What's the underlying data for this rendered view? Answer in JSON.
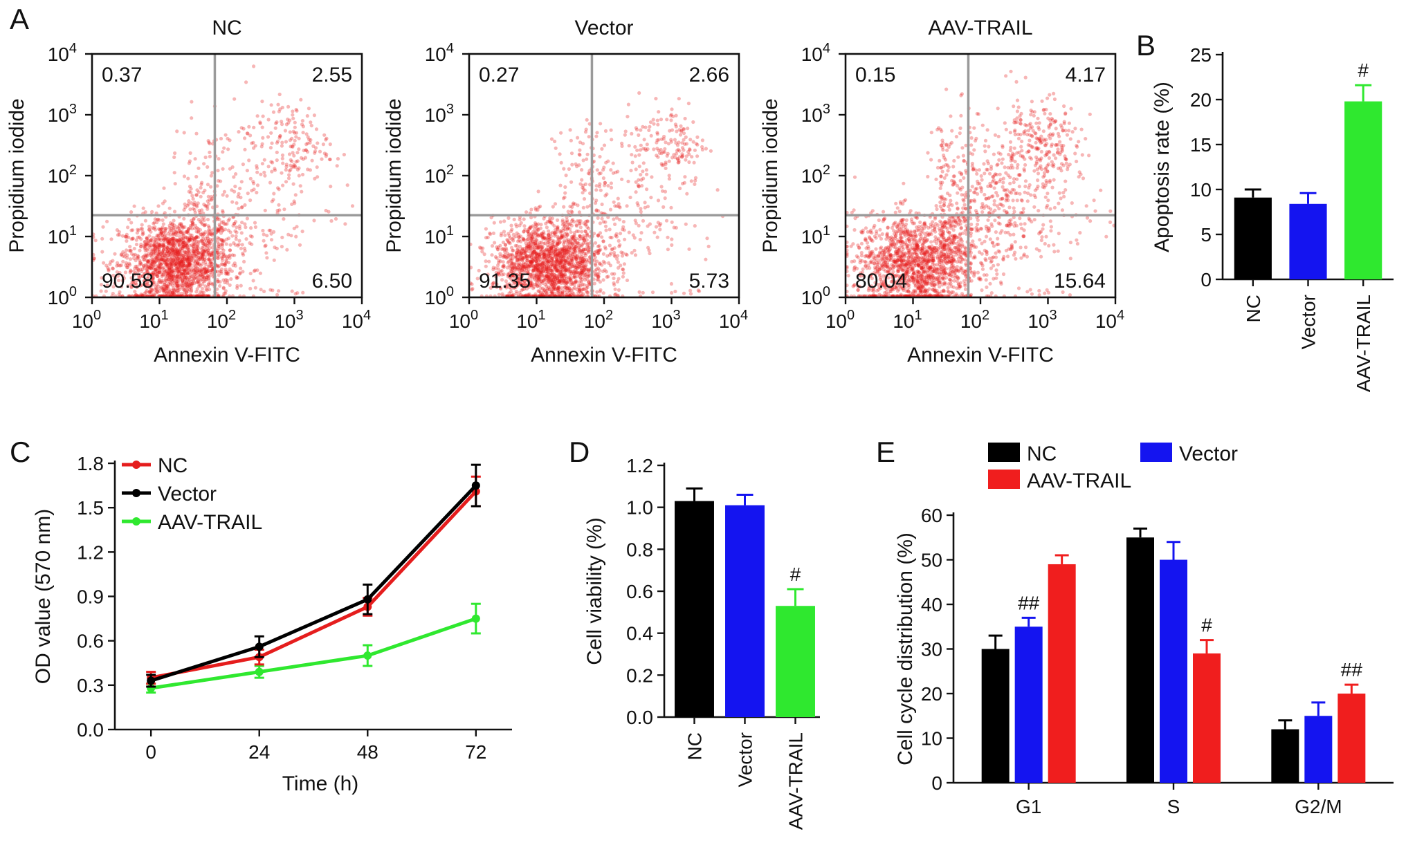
{
  "panels": {
    "A": "A",
    "B": "B",
    "C": "C",
    "D": "D",
    "E": "E"
  },
  "flow": {
    "xlabel": "Annexin V-FITC",
    "ylabel": "Propidium iodide",
    "ticks": [
      "10",
      "10",
      "10",
      "10",
      "10"
    ],
    "exponents": [
      "0",
      "1",
      "2",
      "3",
      "4"
    ],
    "colors": {
      "dots": "#e51d1d",
      "quadrant": "#9a9a9a"
    },
    "plots": [
      {
        "title": "NC",
        "quadrants": {
          "ul": "0.37",
          "ur": "2.55",
          "ll": "90.58",
          "lr": "6.50"
        }
      },
      {
        "title": "Vector",
        "quadrants": {
          "ul": "0.27",
          "ur": "2.66",
          "ll": "91.35",
          "lr": "5.73"
        }
      },
      {
        "title": "AAV-TRAIL",
        "quadrants": {
          "ul": "0.15",
          "ur": "4.17",
          "ll": "80.04",
          "lr": "15.64"
        }
      }
    ]
  },
  "chart_data": [
    {
      "id": "B",
      "type": "bar",
      "title": "",
      "xlabel": "",
      "ylabel": "Apoptosis rate (%)",
      "categories": [
        "NC",
        "Vector",
        "AAV-TRAIL"
      ],
      "values": [
        9.1,
        8.4,
        19.8
      ],
      "errors": [
        0.9,
        1.2,
        1.8
      ],
      "colors": [
        "#000000",
        "#1414f0",
        "#2fe82f"
      ],
      "annotations": [
        "",
        "",
        "#"
      ],
      "ylim": [
        0,
        25
      ],
      "yticks": [
        0,
        5,
        10,
        15,
        20,
        25
      ]
    },
    {
      "id": "C",
      "type": "line",
      "xlabel": "Time (h)",
      "ylabel": "OD value (570 nm)",
      "x": [
        0,
        24,
        48,
        72
      ],
      "xlim": [
        -8,
        80
      ],
      "ylim": [
        0,
        1.8
      ],
      "xticks": [
        0,
        24,
        48,
        72
      ],
      "yticks": [
        "0.0",
        "0.3",
        "0.6",
        "0.9",
        "1.2",
        "1.5",
        "1.8"
      ],
      "legend_position": "top-left",
      "series": [
        {
          "name": "NC",
          "color": "#e51d1d",
          "values": [
            0.35,
            0.49,
            0.83,
            1.61
          ],
          "errors": [
            0.04,
            0.05,
            0.06,
            0.1
          ]
        },
        {
          "name": "Vector",
          "color": "#000000",
          "values": [
            0.33,
            0.56,
            0.88,
            1.65
          ],
          "errors": [
            0.04,
            0.07,
            0.1,
            0.14
          ]
        },
        {
          "name": "AAV-TRAIL",
          "color": "#2fe82f",
          "values": [
            0.28,
            0.39,
            0.5,
            0.75
          ],
          "errors": [
            0.03,
            0.04,
            0.07,
            0.1
          ]
        }
      ]
    },
    {
      "id": "D",
      "type": "bar",
      "xlabel": "",
      "ylabel": "Cell viability (%)",
      "categories": [
        "NC",
        "Vector",
        "AAV-TRAIL"
      ],
      "values": [
        1.03,
        1.01,
        0.53
      ],
      "errors": [
        0.06,
        0.05,
        0.08
      ],
      "colors": [
        "#000000",
        "#1414f0",
        "#2fe82f"
      ],
      "annotations": [
        "",
        "",
        "#"
      ],
      "ylim": [
        0,
        1.2
      ],
      "yticks": [
        "0.0",
        "0.2",
        "0.4",
        "0.6",
        "0.8",
        "1.0",
        "1.2"
      ]
    },
    {
      "id": "E",
      "type": "bar",
      "xlabel": "",
      "ylabel": "Cell cycle distribution (%)",
      "categories": [
        "G1",
        "S",
        "G2/M"
      ],
      "ylim": [
        0,
        60
      ],
      "yticks": [
        0,
        10,
        20,
        30,
        40,
        50,
        60
      ],
      "legend_position": "top",
      "series": [
        {
          "name": "NC",
          "color": "#000000",
          "values": [
            30,
            55,
            12
          ],
          "errors": [
            3,
            2,
            2
          ],
          "annotations": [
            "",
            "",
            ""
          ]
        },
        {
          "name": "Vector",
          "color": "#1414f0",
          "values": [
            35,
            50,
            15
          ],
          "errors": [
            2,
            4,
            3
          ],
          "annotations": [
            "##",
            "",
            ""
          ]
        },
        {
          "name": "AAV-TRAIL",
          "color": "#f01e1e",
          "values": [
            49,
            29,
            20
          ],
          "errors": [
            2,
            3,
            2
          ],
          "annotations": [
            "",
            "#",
            "##"
          ]
        }
      ]
    }
  ]
}
